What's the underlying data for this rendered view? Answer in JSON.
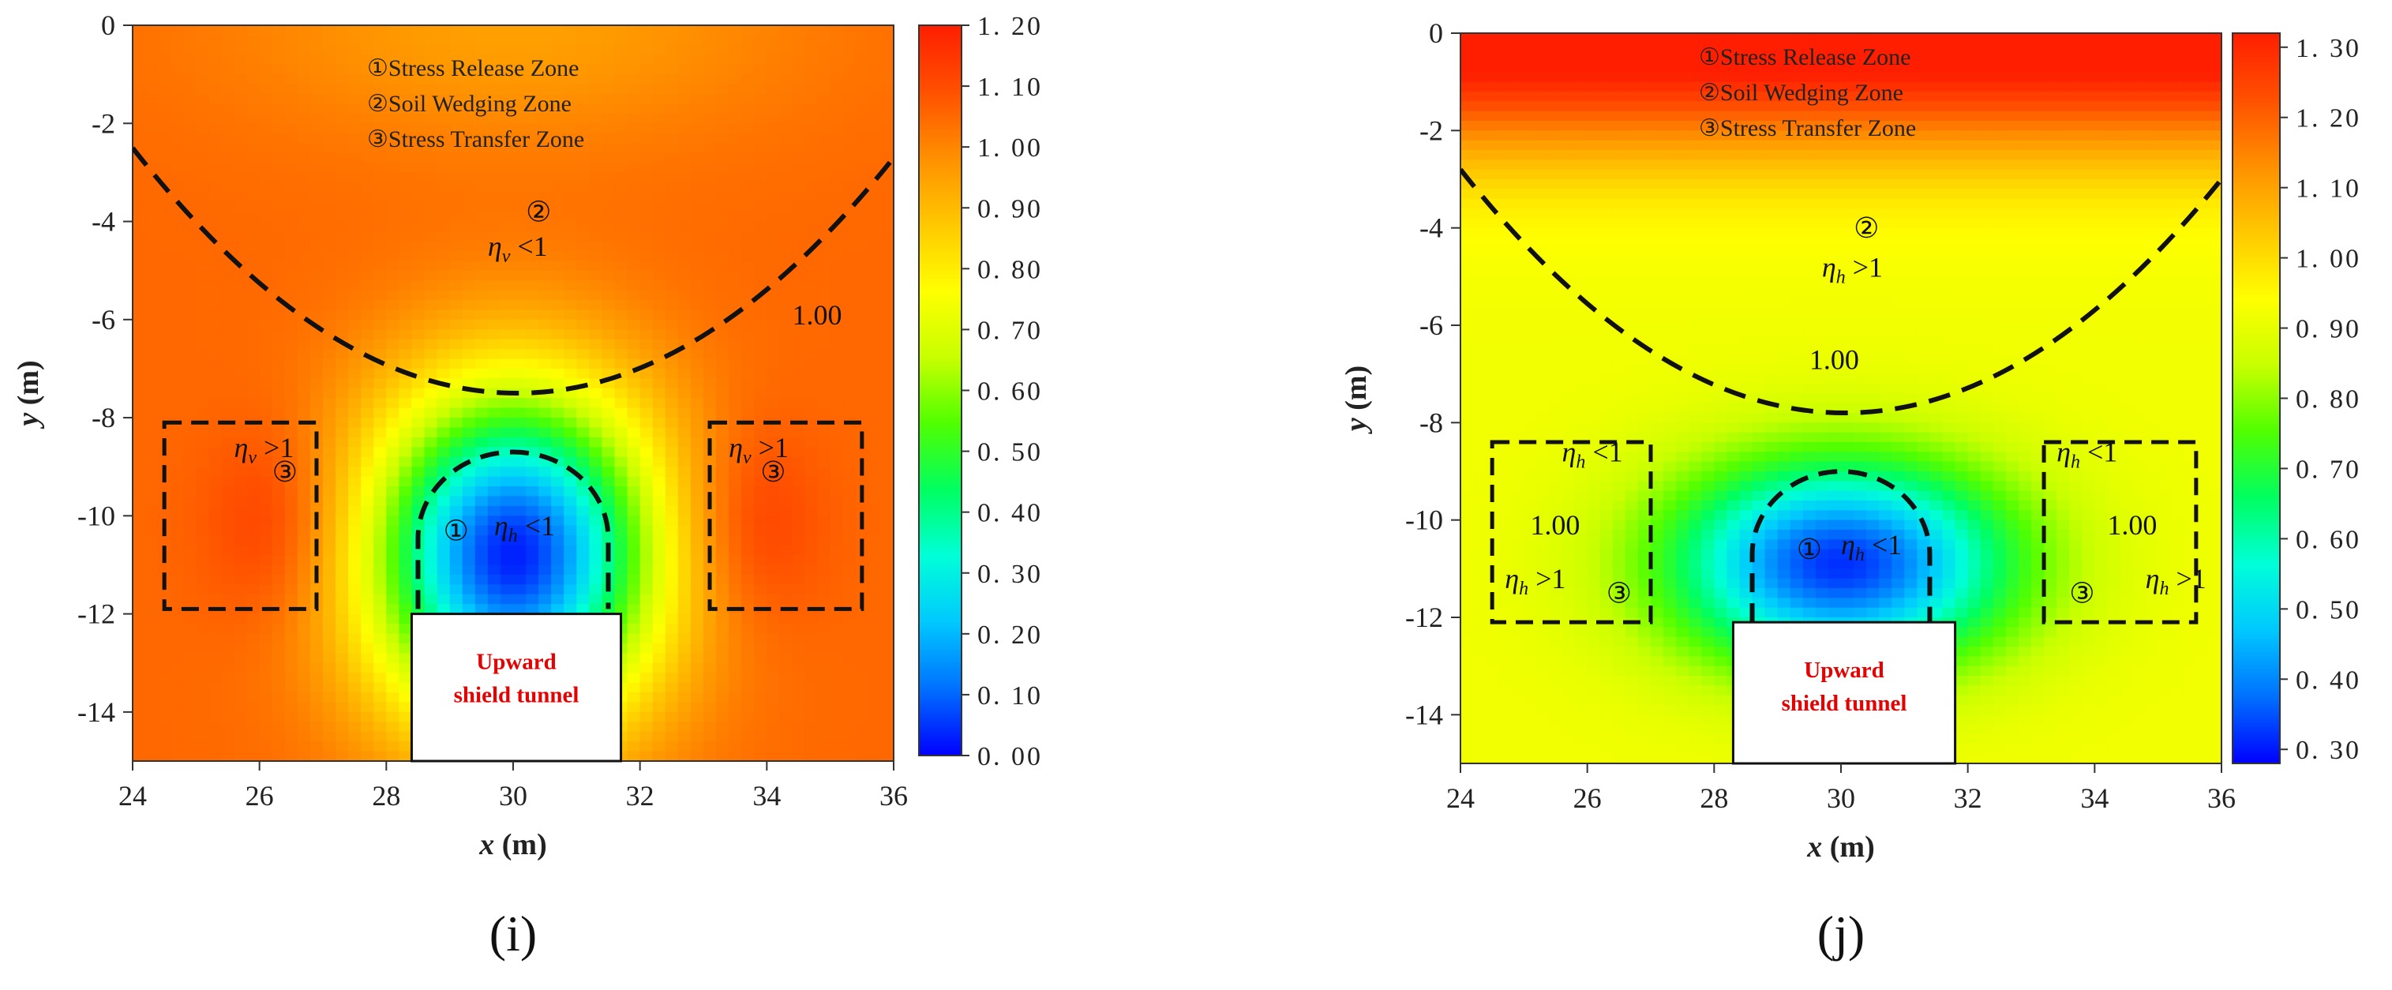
{
  "chart_data": [
    {
      "type": "heatmap",
      "panel_label": "(i)",
      "xlabel_var": "x",
      "xlabel_unit": " (m)",
      "ylabel_var": "y",
      "ylabel_unit": " (m)",
      "xlim": [
        24,
        36
      ],
      "ylim": [
        -15,
        0
      ],
      "x_ticks": [
        24,
        26,
        28,
        30,
        32,
        34,
        36
      ],
      "y_ticks": [
        0,
        -2,
        -4,
        -6,
        -8,
        -10,
        -12,
        -14
      ],
      "colorbar": {
        "min": 0.0,
        "max": 1.2,
        "ticks": [
          "1.20",
          "1.10",
          "1.00",
          "0.90",
          "0.80",
          "0.70",
          "0.60",
          "0.50",
          "0.40",
          "0.30",
          "0.20",
          "0.10",
          "0.00"
        ],
        "colors": [
          "#0000ff",
          "#0070ff",
          "#00c8ff",
          "#00ffd8",
          "#00ff60",
          "#50ff00",
          "#c8ff00",
          "#ffff00",
          "#ffc800",
          "#ff9000",
          "#ff5000",
          "#ff1e00"
        ]
      },
      "background_value": 1.05,
      "field_model": {
        "cx": 30,
        "cy": -10.8,
        "sx": 1.6,
        "sy": 2.4,
        "base": 1.05,
        "dip": 1.02,
        "top_uplift": -0.1,
        "side_peak": 0.1
      },
      "legend_lines": [
        "①Stress Release Zone",
        "②Soil Wedging Zone",
        "③Stress Transfer Zone"
      ],
      "annotations": [
        {
          "text": "②",
          "x": 30.2,
          "y": -4.0
        },
        {
          "text": "η",
          "sub": "v",
          "tail": " <1",
          "x": 29.6,
          "y": -4.7
        },
        {
          "text": "1.00",
          "x": 34.4,
          "y": -6.1
        },
        {
          "text": "η",
          "sub": "v",
          "tail": " >1",
          "x": 25.6,
          "y": -8.8
        },
        {
          "text": "③",
          "x": 26.2,
          "y": -9.3
        },
        {
          "text": "η",
          "sub": "v",
          "tail": " >1",
          "x": 33.4,
          "y": -8.8
        },
        {
          "text": "③",
          "x": 33.9,
          "y": -9.3
        },
        {
          "text": "①",
          "x": 28.9,
          "y": -10.5
        },
        {
          "text": "η",
          "sub": "h",
          "tail": " <1",
          "x": 29.7,
          "y": -10.4
        }
      ],
      "dashed_curve": {
        "x": [
          24,
          30,
          36
        ],
        "y": [
          -2.5,
          -7.5,
          -2.7
        ]
      },
      "dashed_boxes": [
        {
          "x1": 24.5,
          "x2": 26.9,
          "y1": -8.1,
          "y2": -11.9
        },
        {
          "x1": 33.1,
          "x2": 35.5,
          "y1": -8.1,
          "y2": -11.9
        }
      ],
      "dashed_arch": {
        "x1": 28.5,
        "x2": 31.5,
        "ytop": -8.7,
        "ybottom": -11.9
      },
      "tunnel": {
        "x1": 28.4,
        "x2": 31.7,
        "y_top": -12.0,
        "label_lines": [
          "Upward",
          "shield tunnel"
        ]
      }
    },
    {
      "type": "heatmap",
      "panel_label": "(j)",
      "xlabel_var": "x",
      "xlabel_unit": " (m)",
      "ylabel_var": "y",
      "ylabel_unit": " (m)",
      "xlim": [
        24,
        36
      ],
      "ylim": [
        -15,
        0
      ],
      "x_ticks": [
        24,
        26,
        28,
        30,
        32,
        34,
        36
      ],
      "y_ticks": [
        0,
        -2,
        -4,
        -6,
        -8,
        -10,
        -12,
        -14
      ],
      "colorbar": {
        "min": 0.28,
        "max": 1.32,
        "ticks": [
          "1.30",
          "1.20",
          "1.10",
          "1.00",
          "0.90",
          "0.80",
          "0.70",
          "0.60",
          "0.50",
          "0.40",
          "0.30"
        ],
        "colors": [
          "#0000ff",
          "#0070ff",
          "#00c8ff",
          "#00ffd8",
          "#00ff60",
          "#50ff00",
          "#c8ff00",
          "#ffff00",
          "#ffc800",
          "#ff9000",
          "#ff5000",
          "#ff1e00"
        ]
      },
      "background_value": 0.92,
      "field_model": {
        "cx": 30,
        "cy": -10.9,
        "sx": 1.9,
        "sy": 1.5,
        "base": 0.92,
        "dip": 0.6,
        "top_uplift": 0.45,
        "side_peak": 0.0
      },
      "legend_lines": [
        "①Stress Release Zone",
        "②Soil Wedging Zone",
        "③Stress Transfer Zone"
      ],
      "annotations": [
        {
          "text": "②",
          "x": 30.2,
          "y": -4.2
        },
        {
          "text": "η",
          "sub": "h",
          "tail": " >1",
          "x": 29.7,
          "y": -5.0
        },
        {
          "text": "1.00",
          "x": 29.5,
          "y": -6.9
        },
        {
          "text": "η",
          "sub": "h",
          "tail": " <1",
          "x": 25.6,
          "y": -8.8
        },
        {
          "text": "1.00",
          "x": 25.1,
          "y": -10.3
        },
        {
          "text": "η",
          "sub": "h",
          "tail": " >1",
          "x": 24.7,
          "y": -11.4
        },
        {
          "text": "③",
          "x": 26.3,
          "y": -11.7
        },
        {
          "text": "①",
          "x": 29.3,
          "y": -10.8
        },
        {
          "text": "η",
          "sub": "h",
          "tail": " <1",
          "x": 30.0,
          "y": -10.7
        },
        {
          "text": "η",
          "sub": "h",
          "tail": " <1",
          "x": 33.4,
          "y": -8.8
        },
        {
          "text": "1.00",
          "x": 34.2,
          "y": -10.3
        },
        {
          "text": "③",
          "x": 33.6,
          "y": -11.7
        },
        {
          "text": "η",
          "sub": "h",
          "tail": " >1",
          "x": 34.8,
          "y": -11.4
        }
      ],
      "dashed_curve": {
        "x": [
          24,
          30,
          36
        ],
        "y": [
          -2.8,
          -7.8,
          -3.0
        ]
      },
      "dashed_boxes": [
        {
          "x1": 24.5,
          "x2": 27.0,
          "y1": -8.4,
          "y2": -12.1
        },
        {
          "x1": 33.2,
          "x2": 35.6,
          "y1": -8.4,
          "y2": -12.1
        }
      ],
      "dashed_arch": {
        "x1": 28.6,
        "x2": 31.4,
        "ytop": -9.0,
        "ybottom": -12.1
      },
      "tunnel": {
        "x1": 28.3,
        "x2": 31.8,
        "y_top": -12.1,
        "label_lines": [
          "Upward",
          "shield tunnel"
        ]
      }
    }
  ]
}
